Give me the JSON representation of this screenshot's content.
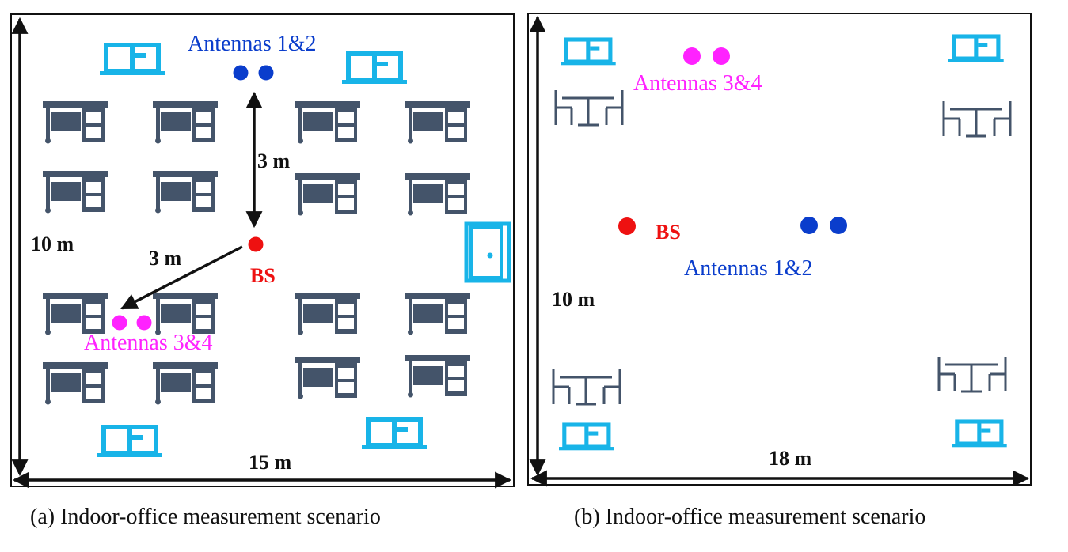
{
  "panel_a": {
    "caption": "(a) Indoor-office measurement scenario",
    "width_label": "15 m",
    "height_label": "10 m",
    "distance_vertical_label": "3 m",
    "distance_diagonal_label": "3 m",
    "bs_label": "BS",
    "antennas_12_label": "Antennas 1&2",
    "antennas_34_label": "Antennas 3&4"
  },
  "panel_b": {
    "caption": "(b) Indoor-office measurement scenario",
    "width_label": "18 m",
    "height_label": "10 m",
    "bs_label": "BS",
    "antennas_12_label": "Antennas 1&2",
    "antennas_34_label": "Antennas 3&4"
  },
  "colors": {
    "bs": "#ee1111",
    "antennas_12": "#0a3dcc",
    "antennas_34": "#ff22ff",
    "window": "#18b4e8",
    "furniture": "#44546a",
    "border": "#111111"
  }
}
